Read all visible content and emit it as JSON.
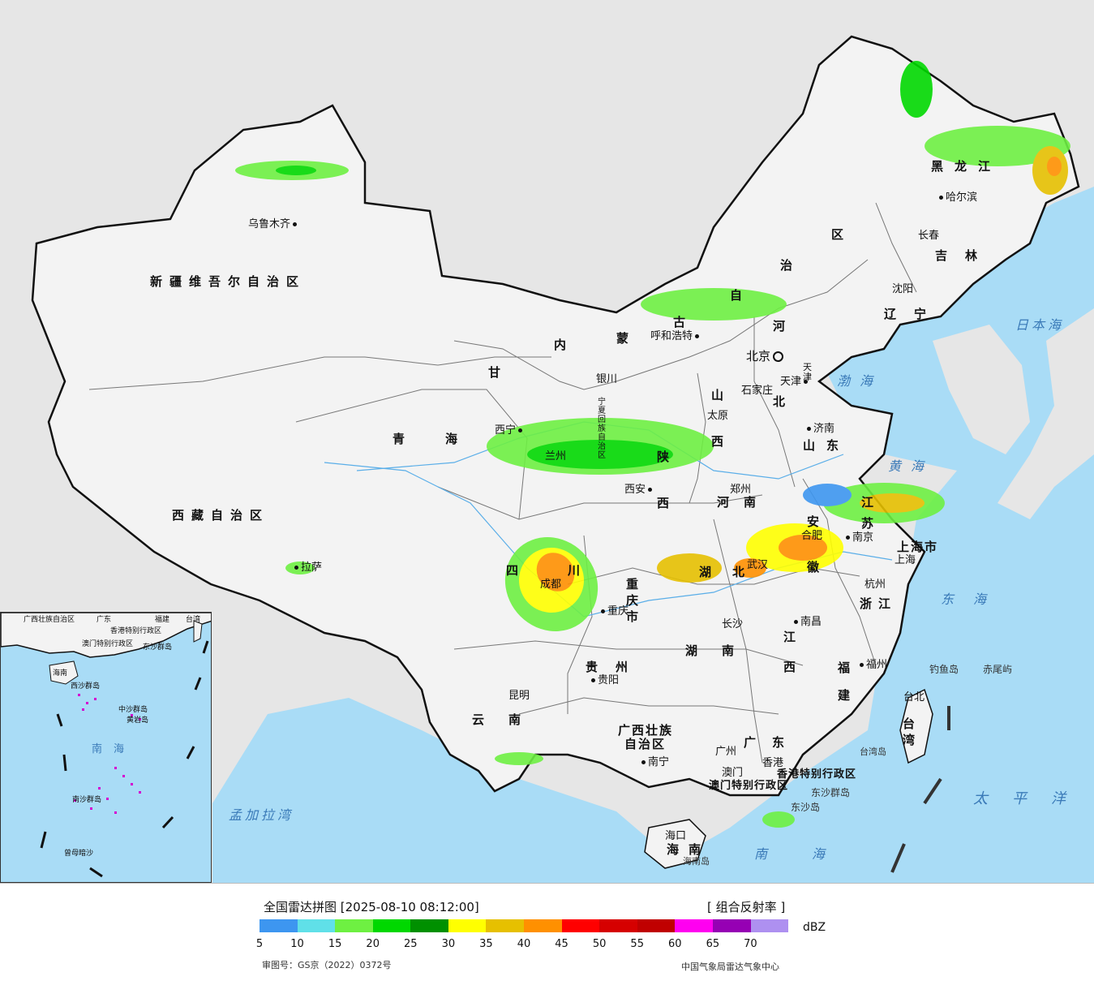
{
  "header": {
    "title": "全国雷达拼图 [2025-08-10 08:12:00]",
    "product": "[ 组合反射率 ]",
    "unit": "dBZ"
  },
  "legend": {
    "colors": [
      "#3d96f0",
      "#60e0e8",
      "#6ef042",
      "#00d800",
      "#009000",
      "#ffff00",
      "#e6c000",
      "#ff9000",
      "#ff0000",
      "#d60000",
      "#c00000",
      "#ff00f0",
      "#9600b4",
      "#ae90f0"
    ],
    "ticks": [
      "5",
      "10",
      "15",
      "20",
      "25",
      "30",
      "35",
      "40",
      "45",
      "50",
      "55",
      "60",
      "65",
      "70"
    ]
  },
  "footer": {
    "review_no": "审图号：GS京（2022）0372号",
    "credit": "中国气象局雷达气象中心"
  },
  "map_colors": {
    "land": "#f3f3f3",
    "sea": "#a9dcf6",
    "outside": "#e6e6e6",
    "border": "#111111"
  },
  "regions": {
    "xinjiang": "新疆维吾尔自治区",
    "xizang": "西藏自治区",
    "qinghai": "青海",
    "gansu": "甘",
    "neimenggu_1": "内",
    "neimenggu_2": "蒙",
    "neimenggu_3": "古",
    "neimenggu_4": "自",
    "neimenggu_5": "治",
    "neimenggu_6": "区",
    "heilongjiang": "黑龙江",
    "jilin": "吉林",
    "liaoning": "辽宁",
    "hebei_1": "河",
    "hebei_2": "北",
    "shanxi_1": "山",
    "shanxi_2": "西",
    "shaanxi_1": "陕",
    "shaanxi_2": "西",
    "ningxia": "宁夏回族自治区",
    "henan": "河南",
    "shandong": "山东",
    "jiangsu_1": "江",
    "jiangsu_2": "苏",
    "anhui_1": "安",
    "anhui_2": "徽",
    "hubei_1": "湖",
    "hubei_2": "北",
    "sichuan_1": "四",
    "sichuan_2": "川",
    "chongqing": "重庆市",
    "guizhou": "贵州",
    "yunnan": "云南",
    "hunan": "湖南",
    "jiangxi_1": "江",
    "jiangxi_2": "西",
    "zhejiang": "浙江",
    "fujian_1": "福",
    "fujian_2": "建",
    "guangxi_1": "广西壮族",
    "guangxi_2": "自治区",
    "guangdong": "广东",
    "hainan": "海南",
    "taiwan": "台湾",
    "shanghai": "上海市",
    "tianjin": "天津",
    "hk": "香港特别行政区",
    "macau": "澳门特别行政区"
  },
  "cities": {
    "urumqi": "乌鲁木齐",
    "lhasa": "拉萨",
    "xining": "西宁",
    "lanzhou": "兰州",
    "yinchuan": "银川",
    "hohhot": "呼和浩特",
    "beijing": "北京",
    "tianjin": "天津",
    "shijiazhuang": "石家庄",
    "taiyuan": "太原",
    "xian": "西安",
    "zhengzhou": "郑州",
    "jinan": "济南",
    "harbin": "哈尔滨",
    "changchun": "长春",
    "shenyang": "沈阳",
    "hefei": "合肥",
    "nanjing": "南京",
    "shanghai": "上海",
    "hangzhou": "杭州",
    "wuhan": "武汉",
    "chengdu": "成都",
    "chongqing": "重庆",
    "guiyang": "贵阳",
    "kunming": "昆明",
    "changsha": "长沙",
    "nanchang": "南昌",
    "fuzhou": "福州",
    "taibei": "台北",
    "nanning": "南宁",
    "guangzhou": "广州",
    "macau": "澳门",
    "hongkong": "香港",
    "haikou": "海口",
    "diaoyu": "钓鱼岛",
    "chiwei": "赤尾屿",
    "dongsha": "东沙群岛",
    "dongshadao": "东沙岛",
    "hainandao": "海南岛",
    "taiwandao": "台湾岛"
  },
  "seas": {
    "bohai": "渤海",
    "huanghai": "黄海",
    "donghai": "东海",
    "nanhai": "南海",
    "japan_sea": "日本海",
    "pacific": "太平洋",
    "bengal": "孟加拉湾"
  },
  "inset": {
    "guangxi": "广西壮族自治区",
    "guangdong": "广东",
    "fujian": "福建",
    "taiwan": "台湾",
    "hk": "香港特别行政区",
    "macau": "澳门特别行政区",
    "dongsha": "东沙群岛",
    "hainan": "海南",
    "xisha": "西沙群岛",
    "zhongsha": "中沙群岛",
    "huangyan": "黄岩岛",
    "nansha": "南沙群岛",
    "nanhai": "南海",
    "zengmu": "曾母暗沙"
  }
}
